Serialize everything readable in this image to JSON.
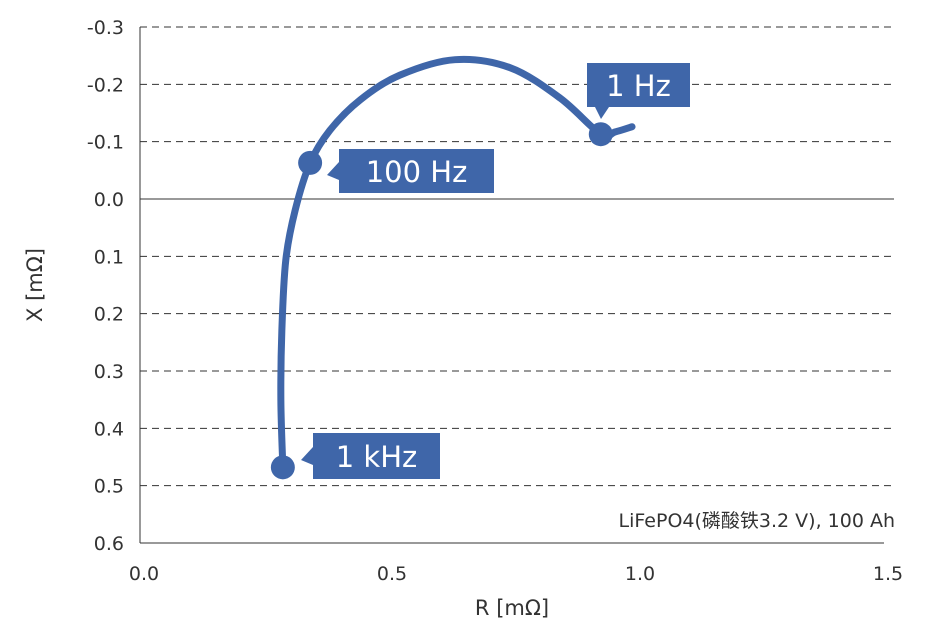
{
  "chart_data": {
    "type": "line",
    "title": "",
    "xlabel": "R [mΩ]",
    "ylabel": "X [mΩ]",
    "xlim": [
      0,
      1.5
    ],
    "ylim": [
      -0.3,
      0.6
    ],
    "y_inverted": true,
    "grid": "horizontal dashed",
    "x_ticks": [
      "0.0",
      "0.5",
      "1.0",
      "1.5"
    ],
    "x_tick_values": [
      0,
      0.5,
      1.0,
      1.5
    ],
    "y_ticks": [
      "-0.3",
      "-0.2",
      "-0.1",
      "0.0",
      "0.1",
      "0.2",
      "0.3",
      "0.4",
      "0.5",
      "0.6"
    ],
    "y_tick_values": [
      -0.3,
      -0.2,
      -0.1,
      0.0,
      0.1,
      0.2,
      0.3,
      0.4,
      0.5,
      0.6
    ],
    "annotation": "LiFePO4(磷酸铁3.2 V), 100 Ah",
    "series_color": "#3f66a9",
    "series": [
      {
        "x": [
          0.288,
          0.284,
          0.286,
          0.294,
          0.313,
          0.343,
          0.383,
          0.444,
          0.524,
          0.635,
          0.746,
          0.847,
          0.929,
          0.958,
          0.992
        ],
        "y": [
          0.468,
          0.351,
          0.229,
          0.106,
          0.019,
          -0.063,
          -0.12,
          -0.173,
          -0.216,
          -0.243,
          -0.229,
          -0.176,
          -0.113,
          -0.117,
          -0.126
        ]
      }
    ],
    "markers": [
      {
        "label": "1 kHz",
        "x": 0.288,
        "y": 0.468
      },
      {
        "label": "100 Hz",
        "x": 0.343,
        "y": -0.063
      },
      {
        "label": "1 Hz",
        "x": 0.929,
        "y": -0.113
      }
    ]
  }
}
